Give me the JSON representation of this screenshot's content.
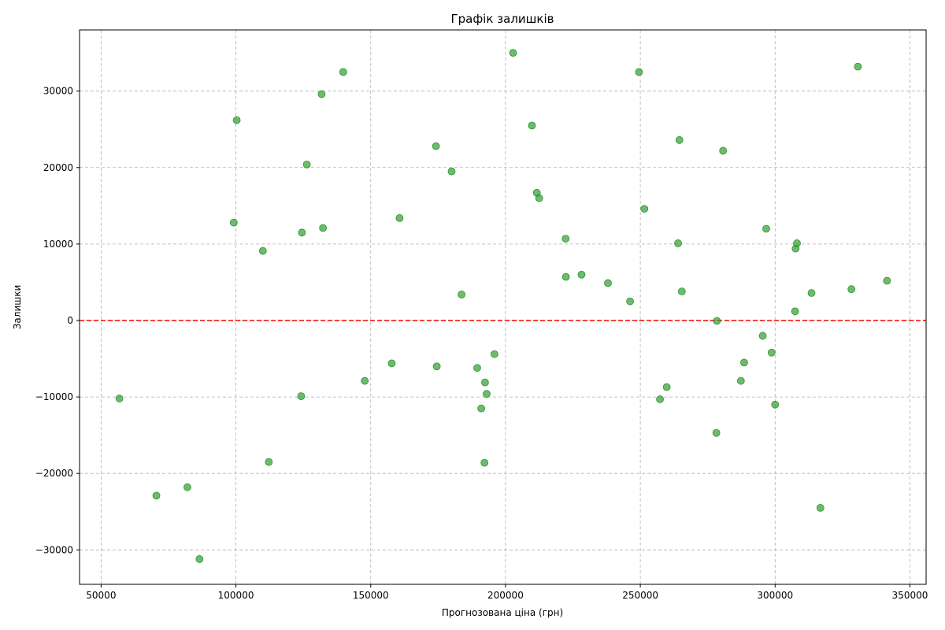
{
  "chart_data": {
    "type": "scatter",
    "title": "Графік залишків",
    "xlabel": "Прогнозована ціна (грн)",
    "ylabel": "Залишки",
    "xlim": [
      42000,
      356000
    ],
    "ylim": [
      -34500,
      38000
    ],
    "xticks": [
      50000,
      100000,
      150000,
      200000,
      250000,
      300000,
      350000
    ],
    "yticks": [
      -30000,
      -20000,
      -10000,
      0,
      10000,
      20000,
      30000
    ],
    "xtick_labels": [
      "50000",
      "100000",
      "150000",
      "200000",
      "250000",
      "300000",
      "350000"
    ],
    "ytick_labels": [
      "−30000",
      "−20000",
      "−10000",
      "0",
      "10000",
      "20000",
      "30000"
    ],
    "grid": true,
    "reference_line": {
      "y": 0,
      "color": "#ff0000",
      "style": "dashed"
    },
    "marker_color": "#2ca02c",
    "x": [
      56800,
      70500,
      82000,
      86500,
      99200,
      100300,
      110000,
      112200,
      124200,
      124500,
      126300,
      131800,
      132300,
      139800,
      147800,
      157800,
      160700,
      174200,
      174500,
      180000,
      183700,
      189500,
      191000,
      192200,
      192400,
      193000,
      195900,
      202800,
      209800,
      211600,
      212500,
      222300,
      222400,
      228200,
      238000,
      246200,
      249500,
      251500,
      257300,
      259800,
      264000,
      264500,
      265400,
      278200,
      278400,
      280700,
      287300,
      288500,
      295400,
      296700,
      298700,
      300000,
      307400,
      307600,
      308100,
      313500,
      316800,
      328300,
      330700,
      341500
    ],
    "y": [
      -10200,
      -22900,
      -21800,
      -31200,
      12800,
      26200,
      9100,
      -18500,
      -9900,
      11500,
      20400,
      29600,
      12100,
      32500,
      -7900,
      -5600,
      13400,
      22800,
      -6000,
      19500,
      3400,
      -6200,
      -11500,
      -18600,
      -8100,
      -9600,
      -4400,
      35000,
      25500,
      16700,
      16000,
      10700,
      5700,
      6000,
      4900,
      2500,
      32500,
      14600,
      -10300,
      -8700,
      10100,
      23600,
      3800,
      -14700,
      -50,
      22200,
      -7900,
      -5500,
      -2000,
      12000,
      -4200,
      -11000,
      1200,
      9400,
      10100,
      3600,
      -24500,
      4100,
      33200,
      5200
    ]
  }
}
